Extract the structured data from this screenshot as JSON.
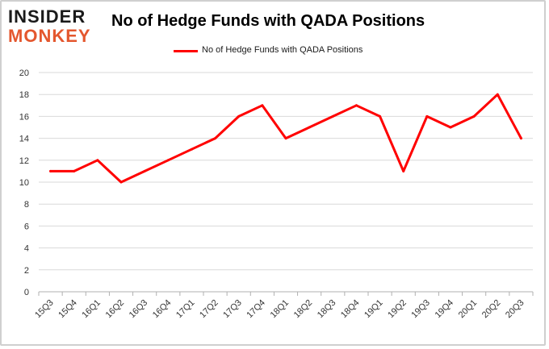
{
  "logo": {
    "line1": "INSIDER",
    "line2": "MONKEY",
    "accent_color": "#e4572e"
  },
  "chart_data": {
    "type": "line",
    "title": "No of Hedge Funds with QADA Positions",
    "xlabel": "",
    "ylabel": "",
    "categories": [
      "15Q3",
      "15Q4",
      "16Q1",
      "16Q2",
      "16Q3",
      "16Q4",
      "17Q1",
      "17Q2",
      "17Q3",
      "17Q4",
      "18Q1",
      "18Q2",
      "18Q3",
      "18Q4",
      "19Q1",
      "19Q2",
      "19Q3",
      "19Q4",
      "20Q1",
      "20Q2",
      "20Q3"
    ],
    "series": [
      {
        "name": "No of Hedge Funds with QADA Positions",
        "color": "#ff0000",
        "values": [
          11,
          11,
          12,
          10,
          11,
          12,
          13,
          14,
          16,
          17,
          14,
          15,
          16,
          17,
          16,
          11,
          16,
          15,
          16,
          18,
          14
        ]
      }
    ],
    "ylim": [
      0,
      20
    ],
    "yticks": [
      0,
      2,
      4,
      6,
      8,
      10,
      12,
      14,
      16,
      18,
      20
    ],
    "grid": true,
    "legend": "top-center"
  }
}
